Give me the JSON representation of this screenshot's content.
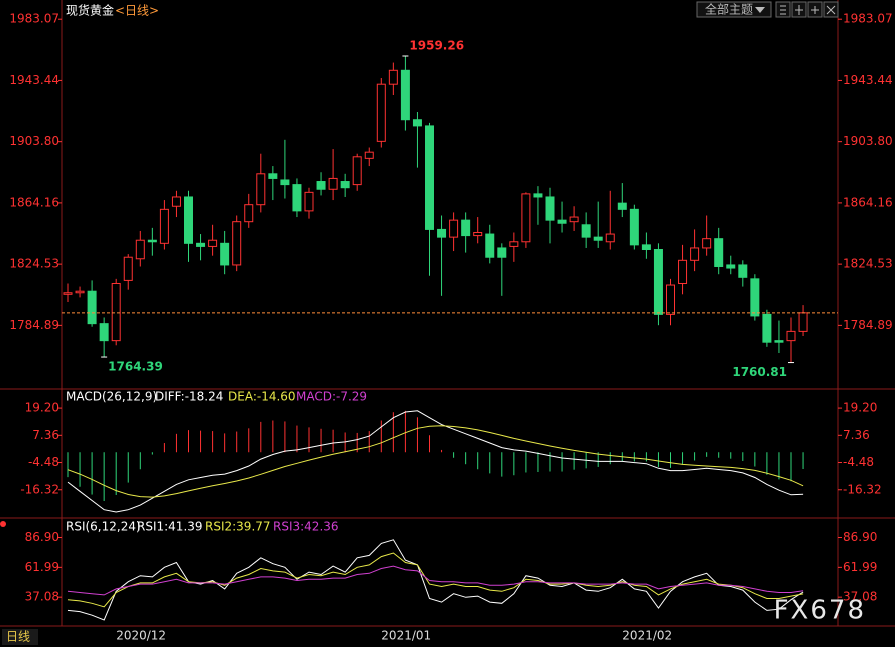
{
  "header": {
    "title": "现货黄金",
    "period": "<日线>",
    "theme_button": "全部主题"
  },
  "footer": {
    "period": "日线",
    "watermark": "FX678"
  },
  "chart_data": [
    {
      "type": "candlestick",
      "categories": [
        null,
        null,
        null,
        null,
        "2020/12",
        null,
        null,
        null,
        null,
        null,
        null,
        null,
        null,
        null,
        null,
        null,
        null,
        null,
        null,
        null,
        null,
        null,
        null,
        null,
        null,
        null,
        "2021/01",
        null,
        null,
        null,
        null,
        null,
        null,
        null,
        null,
        null,
        null,
        null,
        null,
        null,
        null,
        null,
        null,
        null,
        null,
        null,
        "2021/02",
        null,
        null,
        null,
        null,
        null,
        null,
        null,
        null,
        null,
        null,
        null,
        null,
        null,
        null,
        null
      ],
      "open": [
        1805,
        1806,
        1807,
        1786,
        1775,
        1814,
        1828,
        1840,
        1838,
        1862,
        1868,
        1838,
        1836,
        1838,
        1824,
        1852,
        1863,
        1883,
        1879,
        1876,
        1859,
        1878,
        1873,
        1878,
        1876,
        1893,
        1904,
        1941,
        1950,
        1918,
        1914,
        1847,
        1842,
        1853,
        1843,
        1844,
        1835,
        1836,
        1839,
        1870,
        1868,
        1853,
        1852,
        1850,
        1842,
        1839,
        1864,
        1860,
        1837,
        1834,
        1792,
        1812,
        1827,
        1835,
        1841,
        1824,
        1824,
        1815,
        1792,
        1775,
        1775,
        1781
      ],
      "high": [
        1812,
        1810,
        1814,
        1790,
        1815,
        1831,
        1846,
        1848,
        1866,
        1872,
        1872,
        1844,
        1850,
        1846,
        1856,
        1870,
        1896,
        1888,
        1905,
        1880,
        1874,
        1884,
        1899,
        1883,
        1896,
        1900,
        1945,
        1955,
        1959.26,
        1923,
        1916,
        1856,
        1858,
        1858,
        1855,
        1850,
        1838,
        1845,
        1871,
        1875,
        1874,
        1865,
        1862,
        1858,
        1865,
        1872,
        1877,
        1863,
        1845,
        1838,
        1815,
        1837,
        1847,
        1856,
        1848,
        1830,
        1827,
        1818,
        1795,
        1788,
        1790,
        1798
      ],
      "low": [
        1800,
        1803,
        1784,
        1764.39,
        1772,
        1808,
        1823,
        1830,
        1834,
        1855,
        1826,
        1827,
        1830,
        1818,
        1820,
        1848,
        1858,
        1866,
        1867,
        1855,
        1854,
        1869,
        1866,
        1868,
        1872,
        1888,
        1900,
        1934,
        1911,
        1887,
        1817,
        1804,
        1833,
        1832,
        1838,
        1825,
        1804,
        1826,
        1835,
        1850,
        1838,
        1845,
        1846,
        1835,
        1835,
        1834,
        1855,
        1834,
        1828,
        1785,
        1785,
        1805,
        1820,
        1830,
        1818,
        1818,
        1810,
        1788,
        1771,
        1767,
        1760.81,
        1778
      ],
      "close": [
        1806,
        1807,
        1786,
        1775,
        1812,
        1829,
        1840,
        1839,
        1860,
        1868,
        1838,
        1836,
        1840,
        1824,
        1852,
        1863,
        1883,
        1880,
        1876,
        1859,
        1871,
        1873,
        1880,
        1874,
        1894,
        1897,
        1941,
        1950,
        1918,
        1914,
        1847,
        1842,
        1853,
        1843,
        1845,
        1829,
        1829,
        1839,
        1870,
        1868,
        1853,
        1851,
        1855,
        1842,
        1840,
        1844,
        1860,
        1837,
        1834,
        1792,
        1811,
        1827,
        1835,
        1841,
        1823,
        1822,
        1816,
        1791,
        1774,
        1774,
        1781,
        1793
      ],
      "high_labels": [
        null,
        null,
        null,
        null,
        null,
        null,
        null,
        null,
        null,
        null,
        null,
        null,
        null,
        null,
        null,
        null,
        null,
        null,
        null,
        null,
        null,
        null,
        null,
        null,
        null,
        null,
        null,
        null,
        "1959.26",
        null,
        null,
        null,
        null,
        null,
        null,
        null,
        null,
        null,
        null,
        null,
        null,
        null,
        null,
        null,
        null,
        null,
        null,
        null,
        null,
        null,
        null,
        null,
        null,
        null,
        null,
        null,
        null,
        null,
        null,
        null,
        null,
        null
      ],
      "low_labels": [
        null,
        null,
        null,
        "1764.39",
        null,
        null,
        null,
        null,
        null,
        null,
        null,
        null,
        null,
        null,
        null,
        null,
        null,
        null,
        null,
        null,
        null,
        null,
        null,
        null,
        null,
        null,
        null,
        null,
        null,
        null,
        null,
        null,
        null,
        null,
        null,
        null,
        null,
        null,
        null,
        null,
        null,
        null,
        null,
        null,
        null,
        null,
        null,
        null,
        null,
        null,
        null,
        null,
        null,
        null,
        null,
        null,
        null,
        null,
        null,
        null,
        "1760.81",
        null
      ],
      "up_color": "#ff3232",
      "down_color": "#2fd67a",
      "last_line_color": "#ff8c3a",
      "ylim": [
        1743.7,
        1995.5
      ],
      "yticks": [
        1784.89,
        1824.53,
        1864.16,
        {
          "value": 1903.8,
          "label": "1903.80"
        },
        1943.44,
        1983.07
      ]
    },
    {
      "type": "macd",
      "title": "MACD(26,12,9)",
      "series": [
        {
          "name": "DIFF:-18.24",
          "color": "#ffffff",
          "values": [
            -13,
            -17,
            -21,
            -25,
            -26,
            -25,
            -23,
            -20,
            -17,
            -14,
            -12,
            -11,
            -10,
            -9.5,
            -8,
            -6,
            -3,
            -1,
            0.5,
            1,
            2,
            3,
            4,
            4.5,
            5.5,
            7,
            11,
            15,
            17.5,
            18,
            15,
            12,
            10,
            8,
            6,
            4,
            2,
            1,
            0.5,
            -0.5,
            -1.5,
            -2.5,
            -3,
            -3.5,
            -4,
            -4,
            -4,
            -4.5,
            -5,
            -7,
            -8,
            -8,
            -7.5,
            -7,
            -7.5,
            -8,
            -9,
            -11,
            -14,
            -16.5,
            -18.5,
            -18.24
          ]
        },
        {
          "name": "DEA:-14.60",
          "color": "#e8e84a",
          "values": [
            -7.6,
            -9.5,
            -11.8,
            -14.4,
            -16.7,
            -18.4,
            -19.3,
            -19.5,
            -19,
            -18,
            -16.8,
            -15.7,
            -14.6,
            -13.6,
            -12.5,
            -11.2,
            -9.6,
            -7.9,
            -6.2,
            -4.8,
            -3.4,
            -2.1,
            -0.9,
            0.2,
            1.3,
            2.4,
            4.1,
            6.3,
            8.5,
            10.4,
            11.3,
            11.5,
            11.2,
            10.6,
            9.7,
            8.6,
            7.3,
            6,
            4.9,
            3.8,
            2.7,
            1.7,
            0.8,
            0,
            -0.8,
            -1.4,
            -2,
            -2.5,
            -3,
            -3.8,
            -4.6,
            -5.3,
            -5.7,
            -6,
            -6.3,
            -6.6,
            -7.1,
            -7.9,
            -9.1,
            -10.6,
            -12.2,
            -14.6
          ]
        }
      ],
      "histogram": {
        "name": "MACD:-7.29",
        "color": "#d040d0",
        "pos_color": "#ff3232",
        "neg_color": "#2fd67a",
        "values": [
          -10.8,
          -15,
          -18.4,
          -21.2,
          -18.6,
          -13.2,
          -7.4,
          -1,
          4,
          8,
          9.6,
          9.4,
          9.2,
          8.2,
          9,
          10.4,
          13.2,
          13.8,
          13.4,
          11.6,
          10.8,
          10.2,
          9.8,
          8.6,
          8.4,
          9.2,
          13.8,
          17.4,
          18,
          15.2,
          7.4,
          1,
          -2.4,
          -5.2,
          -7.4,
          -9.2,
          -10.6,
          -10,
          -8.8,
          -8.6,
          -8.4,
          -8.4,
          -7.6,
          -7,
          -6.4,
          -5.2,
          -4,
          -4,
          -4,
          -6.4,
          -6.8,
          -5.4,
          -3.6,
          -2,
          -2.4,
          -2.8,
          -3.8,
          -6.2,
          -9.8,
          -11.8,
          -12.6,
          -7.29
        ]
      },
      "ylim": [
        -28.6,
        27.5
      ],
      "yticks": [
        {
          "value": 19.2,
          "label": "19.20"
        },
        7.36,
        -4.48,
        -16.32
      ]
    },
    {
      "type": "line",
      "title": "RSI(6,12,24)",
      "series": [
        {
          "name": "RSI1:41.39",
          "color": "#ffffff",
          "values": [
            26,
            25,
            22,
            18,
            42,
            50,
            55,
            54,
            62,
            66,
            50,
            48,
            51,
            44,
            57,
            62,
            70,
            65,
            62,
            52,
            58,
            56,
            63,
            58,
            70,
            72,
            82,
            85,
            68,
            64,
            36,
            33,
            40,
            37,
            38,
            33,
            32,
            40,
            55,
            53,
            47,
            46,
            49,
            43,
            42,
            45,
            52,
            44,
            42,
            28,
            42,
            50,
            54,
            57,
            47,
            46,
            43,
            33,
            26,
            27,
            35,
            41.39
          ]
        },
        {
          "name": "RSI2:39.77",
          "color": "#e8e84a",
          "values": [
            35,
            34,
            32,
            29,
            41,
            46,
            49,
            49,
            54,
            57,
            50,
            49,
            50,
            47,
            53,
            56,
            61,
            59,
            58,
            53,
            56,
            55,
            58,
            56,
            62,
            64,
            71,
            74,
            66,
            64,
            48,
            46,
            48,
            46,
            46,
            43,
            42,
            45,
            52,
            51,
            48,
            48,
            49,
            47,
            46,
            47,
            50,
            47,
            46,
            39,
            44,
            48,
            50,
            52,
            48,
            47,
            45,
            40,
            36,
            36,
            38,
            39.77
          ]
        },
        {
          "name": "RSI3:42.36",
          "color": "#d040d0",
          "values": [
            42,
            41,
            40,
            39,
            44,
            46,
            48,
            48,
            50,
            52,
            49,
            49,
            49,
            48,
            50,
            52,
            54,
            54,
            53,
            51,
            52,
            52,
            53,
            53,
            56,
            57,
            61,
            63,
            60,
            59,
            51,
            50,
            50,
            49,
            49,
            47,
            47,
            48,
            50,
            50,
            49,
            49,
            49,
            48,
            48,
            48,
            49,
            48,
            48,
            44,
            46,
            47,
            48,
            49,
            47,
            47,
            46,
            44,
            42,
            41,
            41,
            42.36
          ]
        }
      ],
      "ylim": [
        13,
        103.2
      ],
      "yticks": [
        {
          "value": 86.9,
          "label": "86.90"
        },
        61.99,
        37.08
      ]
    }
  ]
}
